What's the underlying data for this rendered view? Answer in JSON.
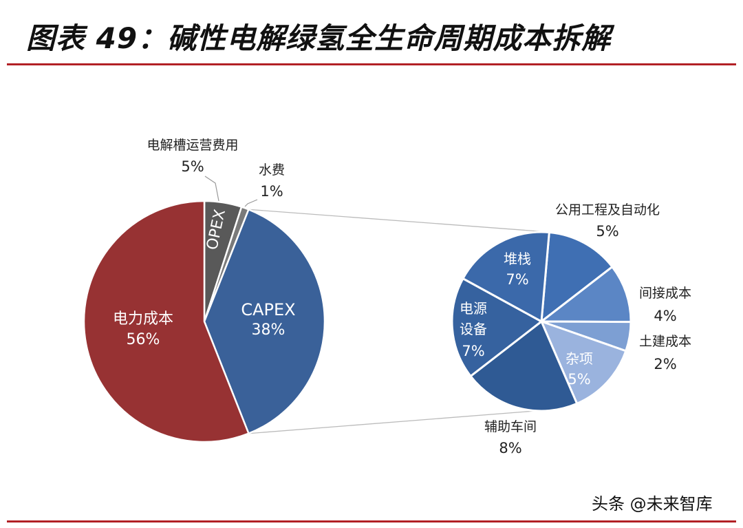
{
  "header": {
    "title": "图表 49：碱性电解绿氢全生命周期成本拆解"
  },
  "watermark": "头条 @未来智库",
  "chart_data": [
    {
      "type": "pie",
      "title": "",
      "slices": [
        {
          "label": "电力成本",
          "value": 56,
          "value_label": "56%",
          "color": "#973233",
          "label_inside": true
        },
        {
          "label": "CAPEX",
          "value": 38,
          "value_label": "38%",
          "color": "#3a6199",
          "label_inside": true
        },
        {
          "label": "水费",
          "value": 1,
          "value_label": "1%",
          "color": "#7a7a7a",
          "label_inside": false
        },
        {
          "label": "OPEX",
          "value": 5,
          "value_label": "",
          "color": "#595959",
          "label_inside": true
        },
        {
          "label": "电解槽运营费用",
          "value": 5,
          "value_label": "5%",
          "color": "#595959",
          "label_inside": false
        }
      ],
      "note": "OPEX slice carries the inside label; outside label 电解槽运营费用 5% refers to it; CAPEX is exploded into the breakdown pie"
    },
    {
      "type": "pie",
      "title": "",
      "slices": [
        {
          "label": "公用工程及自动化",
          "value": 5,
          "value_label": "5%",
          "color": "#3f6fb3"
        },
        {
          "label": "间接成本",
          "value": 4,
          "value_label": "4%",
          "color": "#5b86c5"
        },
        {
          "label": "土建成本",
          "value": 2,
          "value_label": "2%",
          "color": "#7d9fd3"
        },
        {
          "label": "杂项",
          "value": 5,
          "value_label": "5%",
          "color": "#9ab3de"
        },
        {
          "label": "辅助车间",
          "value": 8,
          "value_label": "8%",
          "color": "#2f5a94"
        },
        {
          "label": "电源设备",
          "value": 7,
          "value_label": "7%",
          "color": "#36629f"
        },
        {
          "label": "堆栈",
          "value": 7,
          "value_label": "7%",
          "color": "#3b69aa"
        }
      ]
    }
  ]
}
